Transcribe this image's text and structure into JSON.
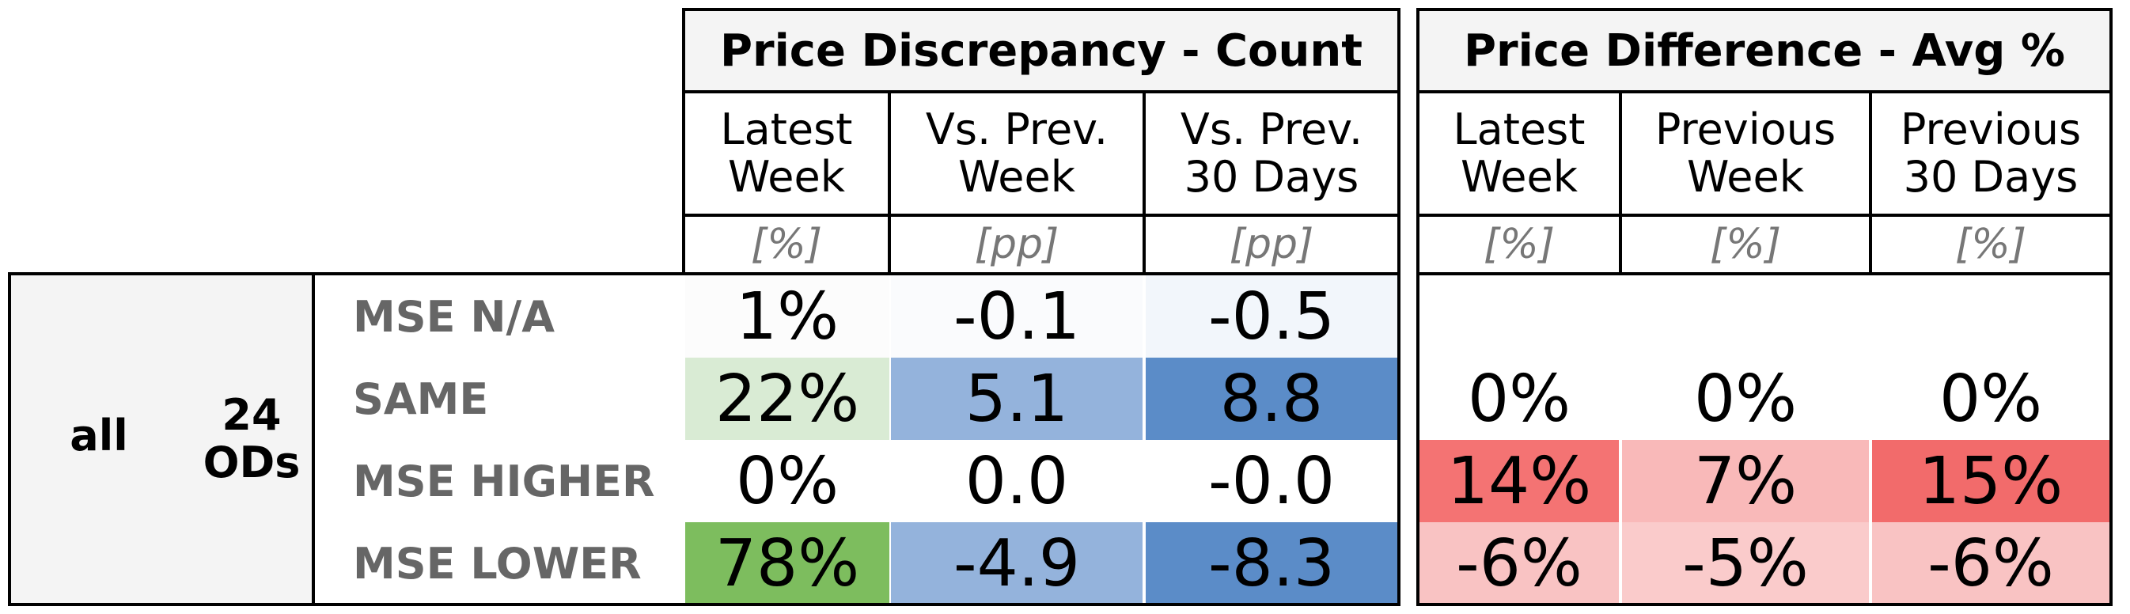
{
  "left_header": {
    "title": "Price Discrepancy - Count",
    "columns": [
      {
        "label": "Latest\nWeek",
        "unit": "[%]"
      },
      {
        "label": "Vs. Prev.\nWeek",
        "unit": "[pp]"
      },
      {
        "label": "Vs. Prev.\n30 Days",
        "unit": "[pp]"
      }
    ]
  },
  "right_header": {
    "title": "Price Difference - Avg %",
    "columns": [
      {
        "label": "Latest\nWeek",
        "unit": "[%]"
      },
      {
        "label": "Previous\nWeek",
        "unit": "[%]"
      },
      {
        "label": "Previous\n30 Days",
        "unit": "[%]"
      }
    ]
  },
  "group": {
    "segment": "all",
    "ods": "24\nODs"
  },
  "rows": [
    {
      "label": "MSE N/A",
      "left": [
        {
          "v": "1%",
          "bg": "#fcfcfc"
        },
        {
          "v": "-0.1",
          "bg": "#fafbfd"
        },
        {
          "v": "-0.5",
          "bg": "#f2f6fb"
        }
      ],
      "right": [
        {
          "v": "",
          "bg": "#ffffff"
        },
        {
          "v": "",
          "bg": "#ffffff"
        },
        {
          "v": "",
          "bg": "#ffffff"
        }
      ]
    },
    {
      "label": "SAME",
      "left": [
        {
          "v": "22%",
          "bg": "#d9ebd4"
        },
        {
          "v": "5.1",
          "bg": "#94b3dc"
        },
        {
          "v": "8.8",
          "bg": "#5b8cc8"
        }
      ],
      "right": [
        {
          "v": "0%",
          "bg": "#ffffff"
        },
        {
          "v": "0%",
          "bg": "#ffffff"
        },
        {
          "v": "0%",
          "bg": "#ffffff"
        }
      ]
    },
    {
      "label": "MSE HIGHER",
      "left": [
        {
          "v": "0%",
          "bg": "#ffffff"
        },
        {
          "v": "0.0",
          "bg": "#ffffff"
        },
        {
          "v": "-0.0",
          "bg": "#ffffff"
        }
      ],
      "right": [
        {
          "v": "14%",
          "bg": "#f47373"
        },
        {
          "v": "7%",
          "bg": "#f9b9b9"
        },
        {
          "v": "15%",
          "bg": "#f26b6b"
        }
      ]
    },
    {
      "label": "MSE LOWER",
      "left": [
        {
          "v": "78%",
          "bg": "#7dbd5e"
        },
        {
          "v": "-4.9",
          "bg": "#94b3dc"
        },
        {
          "v": "-8.3",
          "bg": "#5b8cc8"
        }
      ],
      "right": [
        {
          "v": "-6%",
          "bg": "#f9c3c3"
        },
        {
          "v": "-5%",
          "bg": "#facbcb"
        },
        {
          "v": "-6%",
          "bg": "#f9c3c3"
        }
      ]
    }
  ]
}
